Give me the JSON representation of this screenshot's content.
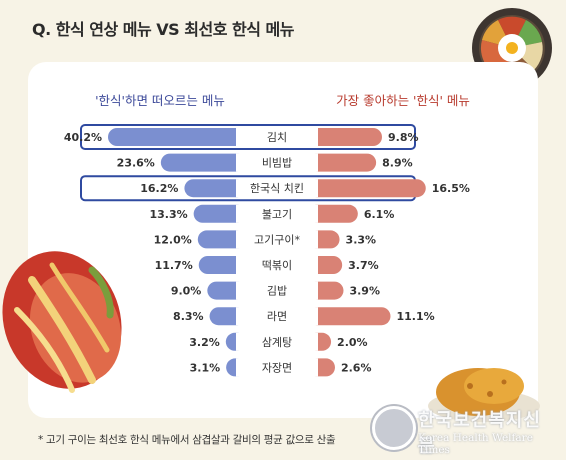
{
  "title": "Q. 한식 연상 메뉴 VS 최선호 한식 메뉴",
  "footnote": "* 고기 구이는 최선호 한식 메뉴에서 삼겹살과 갈비의 평균 값으로 산출",
  "watermark": {
    "ko": "한국보건복지신문",
    "en": "Korea Health Welfare Times"
  },
  "colors": {
    "left_series": "#7b8fd0",
    "right_series": "#d98275",
    "highlight_border": "#2f4aa0",
    "label_left": "#3d4a9a",
    "label_right": "#b83b2e"
  },
  "chart_data": {
    "type": "bar",
    "layout": "butterfly",
    "unit": "%",
    "categories": [
      "김치",
      "비빔밥",
      "한국식 치킨",
      "불고기",
      "고기구이*",
      "떡볶이",
      "김밥",
      "라면",
      "삼계탕",
      "자장면"
    ],
    "series": [
      {
        "name": "'한식'하면 떠오르는 메뉴",
        "side": "left",
        "values": [
          40.2,
          23.6,
          16.2,
          13.3,
          12.0,
          11.7,
          9.0,
          8.3,
          3.2,
          3.1
        ]
      },
      {
        "name": "가장 좋아하는 '한식' 메뉴",
        "side": "right",
        "values": [
          9.8,
          8.9,
          16.5,
          6.1,
          3.3,
          3.7,
          3.9,
          11.1,
          2.0,
          2.6
        ]
      }
    ],
    "highlighted": [
      "김치",
      "한국식 치킨"
    ],
    "legend": "top"
  }
}
